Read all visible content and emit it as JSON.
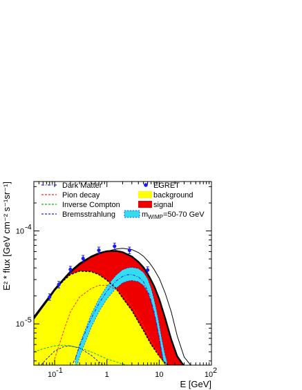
{
  "chart_data": {
    "type": "line",
    "xlabel": "E [GeV]",
    "ylabel": "E² * flux [GeV cm⁻² s⁻¹sr⁻¹]",
    "xscale": "log",
    "yscale": "log",
    "xlim": [
      0.04,
      100
    ],
    "ylim": [
      3.6e-06,
      0.00034
    ],
    "x_ticks": [
      {
        "value": 0.1,
        "label": "10",
        "exp": "-1"
      },
      {
        "value": 1,
        "label": "1",
        "exp": ""
      },
      {
        "value": 10,
        "label": "10",
        "exp": ""
      },
      {
        "value": 100,
        "label": "10",
        "exp": "2"
      }
    ],
    "y_ticks": [
      {
        "value": 0.0001,
        "label": "10",
        "exp": "-4"
      },
      {
        "value": 1e-05,
        "label": "10",
        "exp": "-5"
      }
    ],
    "legend": {
      "position": "top",
      "entries": [
        {
          "key": "dm",
          "label": "Dark Matter",
          "style": "dash",
          "color": "#1a1aff"
        },
        {
          "key": "egret",
          "label": "EGRET",
          "style": "marker",
          "color": "#1a1aee"
        },
        {
          "key": "pion",
          "label": "Pion decay",
          "style": "dash",
          "color": "#ff2222"
        },
        {
          "key": "bg",
          "label": "background",
          "style": "fill",
          "color": "#ffff00"
        },
        {
          "key": "ic",
          "label": "Inverse Compton",
          "style": "dash",
          "color": "#00bb00"
        },
        {
          "key": "sig",
          "label": "signal",
          "style": "fill",
          "color": "#ee0000"
        },
        {
          "key": "brems",
          "label": "Bremsstrahlung",
          "style": "dash",
          "color": "#1a1aff"
        },
        {
          "key": "band",
          "label": "m",
          "sub": "WIMP",
          "suffix": "=50-70 GeV",
          "style": "band",
          "color": "#33ddee"
        }
      ]
    },
    "series": [
      {
        "name": "EGRET",
        "type": "points",
        "color": "#1a1aee",
        "x": [
          0.08,
          0.12,
          0.2,
          0.35,
          0.7,
          1.4,
          2.7,
          6.0
        ],
        "y": [
          1.95e-05,
          2.65e-05,
          3.85e-05,
          5.05e-05,
          6.2e-05,
          6.85e-05,
          6.2e-05,
          3.8e-05
        ],
        "err_frac": 0.08
      },
      {
        "name": "background",
        "type": "area",
        "color": "#ffff00",
        "x": [
          0.04,
          0.06,
          0.08,
          0.1,
          0.15,
          0.2,
          0.3,
          0.5,
          0.7,
          1.0,
          1.5,
          2.0,
          3.0,
          4.0,
          5.0,
          7.0,
          10,
          13,
          17,
          22
        ],
        "y": [
          1.15e-05,
          1.55e-05,
          1.95e-05,
          2.3e-05,
          2.95e-05,
          3.4e-05,
          3.7e-05,
          3.65e-05,
          3.4e-05,
          2.95e-05,
          2.4e-05,
          1.9e-05,
          1.4e-05,
          1.05e-05,
          8.5e-06,
          6e-06,
          4.5e-06,
          3.8e-06,
          3.4e-06,
          3.2e-06
        ]
      },
      {
        "name": "signal",
        "type": "area",
        "color": "#ee0000",
        "x": [
          0.04,
          0.06,
          0.08,
          0.1,
          0.15,
          0.2,
          0.3,
          0.5,
          0.7,
          1.0,
          1.5,
          2.0,
          3.0,
          4.0,
          5.0,
          6.5,
          8.0,
          10,
          13,
          17,
          22,
          30
        ],
        "y": [
          1.18e-05,
          1.6e-05,
          1.98e-05,
          2.35e-05,
          3.05e-05,
          3.65e-05,
          4.45e-05,
          5.3e-05,
          5.75e-05,
          6.05e-05,
          6.1e-05,
          5.9e-05,
          5.3e-05,
          4.65e-05,
          4.05e-05,
          3.2e-05,
          2.55e-05,
          1.85e-05,
          1.15e-05,
          6.8e-06,
          4.5e-06,
          3.5e-06
        ]
      },
      {
        "name": "total model",
        "type": "line",
        "style": "solid",
        "width": 2.4,
        "color": "#000000",
        "x": [
          0.04,
          0.06,
          0.08,
          0.1,
          0.15,
          0.2,
          0.3,
          0.5,
          0.7,
          1.0,
          1.5,
          2.0,
          3.0,
          4.0,
          5.0,
          6.5,
          8.0,
          10,
          13,
          17,
          22,
          30
        ],
        "y": [
          1.18e-05,
          1.6e-05,
          1.98e-05,
          2.35e-05,
          3.05e-05,
          3.65e-05,
          4.45e-05,
          5.3e-05,
          5.75e-05,
          6.05e-05,
          6.1e-05,
          5.9e-05,
          5.3e-05,
          4.65e-05,
          4.05e-05,
          3.2e-05,
          2.55e-05,
          1.85e-05,
          1.15e-05,
          6.8e-06,
          4.5e-06,
          3.5e-06
        ]
      },
      {
        "name": "alternative model",
        "type": "line",
        "style": "solid",
        "width": 1,
        "color": "#000000",
        "x": [
          0.04,
          0.06,
          0.08,
          0.1,
          0.15,
          0.2,
          0.3,
          0.5,
          0.7,
          1.0,
          1.5,
          2.0,
          3.0,
          4.0,
          5.0,
          6.5,
          8.0,
          10,
          13,
          17,
          22,
          30,
          40
        ],
        "y": [
          1.12e-05,
          1.53e-05,
          1.9e-05,
          2.27e-05,
          2.98e-05,
          3.55e-05,
          4.32e-05,
          5.2e-05,
          5.65e-05,
          6.05e-05,
          6.4e-05,
          6.5e-05,
          6.3e-05,
          5.85e-05,
          5.35e-05,
          4.55e-05,
          3.85e-05,
          3.1e-05,
          2.15e-05,
          1.35e-05,
          7.5e-06,
          4.4e-06,
          3.6e-06
        ]
      },
      {
        "name": "background outline",
        "type": "line",
        "style": "dash",
        "width": 1.6,
        "color": "#000000",
        "x": [
          0.04,
          0.06,
          0.08,
          0.1,
          0.15,
          0.2,
          0.3,
          0.5,
          0.7,
          1.0,
          1.5,
          2.0,
          3.0,
          4.0,
          5.0,
          7.0,
          10,
          13,
          17,
          22
        ],
        "y": [
          1.15e-05,
          1.55e-05,
          1.95e-05,
          2.3e-05,
          2.95e-05,
          3.4e-05,
          3.7e-05,
          3.65e-05,
          3.4e-05,
          2.95e-05,
          2.4e-05,
          1.9e-05,
          1.4e-05,
          1.05e-05,
          8.5e-06,
          6e-06,
          4.5e-06,
          3.8e-06,
          3.4e-06,
          3.2e-06
        ]
      },
      {
        "name": "Pion decay",
        "type": "line",
        "style": "dash",
        "width": 1,
        "color": "#ff2222",
        "x": [
          0.1,
          0.15,
          0.2,
          0.3,
          0.5,
          0.7,
          1.0,
          1.5,
          2.0,
          3.0,
          4.0,
          5.0,
          7.0,
          10,
          15,
          20
        ],
        "y": [
          4.2e-06,
          8.5e-06,
          1.35e-05,
          1.95e-05,
          2.4e-05,
          2.6e-05,
          2.6e-05,
          2.35e-05,
          2.05e-05,
          1.55e-05,
          1.2e-05,
          9.5e-06,
          6.5e-06,
          4.5e-06,
          3.3e-06,
          3e-06
        ]
      },
      {
        "name": "Inverse Compton",
        "type": "line",
        "style": "dash",
        "width": 1,
        "color": "#00bb00",
        "x": [
          0.04,
          0.06,
          0.1,
          0.15,
          0.2,
          0.3,
          0.5,
          0.7,
          1.0,
          1.5,
          2.0,
          3.0,
          5.0,
          10
        ],
        "y": [
          5e-06,
          5.4e-06,
          5.8e-06,
          5.9e-06,
          5.8e-06,
          5.5e-06,
          5e-06,
          4.6e-06,
          4.2e-06,
          3.9e-06,
          3.7e-06,
          3.5e-06,
          3.3e-06,
          3.1e-06
        ]
      },
      {
        "name": "Bremsstrahlung",
        "type": "line",
        "style": "dash",
        "width": 1,
        "color": "#1a1aff",
        "x": [
          0.05,
          0.07,
          0.1,
          0.15,
          0.2,
          0.3,
          0.5,
          0.7,
          1.0,
          1.5
        ],
        "y": [
          3.4e-06,
          4.2e-06,
          5.1e-06,
          5.7e-06,
          5.8e-06,
          5.5e-06,
          4.6e-06,
          3.9e-06,
          3.3e-06,
          2.9e-06
        ]
      },
      {
        "name": "Dark Matter",
        "type": "line",
        "style": "dashdot",
        "width": 1,
        "color": "#1a1aff",
        "x": [
          0.2,
          0.25,
          0.3,
          0.5,
          0.7,
          1.0,
          1.5,
          2.0,
          2.5,
          3.0,
          4.0,
          5.0,
          6.5,
          8.0,
          10,
          12
        ],
        "y": [
          3.3e-06,
          4.3e-06,
          5.8e-06,
          1.15e-05,
          1.65e-05,
          2.25e-05,
          2.9e-05,
          3.25e-05,
          3.38e-05,
          3.4e-05,
          3.2e-05,
          2.85e-05,
          2.05e-05,
          1.35e-05,
          7.2e-06,
          3.8e-06
        ]
      },
      {
        "name": "m_WIMP=50-70 GeV",
        "type": "band",
        "color": "#33ddee",
        "x": [
          0.25,
          0.3,
          0.5,
          0.7,
          1.0,
          1.5,
          2.0,
          2.5,
          3.0,
          4.0,
          5.0,
          6.0,
          7.0,
          8.0,
          9.0,
          10,
          11,
          12,
          13,
          14
        ],
        "y": [
          3.6e-06,
          5.2e-06,
          1.08e-05,
          1.58e-05,
          2.18e-05,
          2.85e-05,
          3.25e-05,
          3.4e-05,
          3.45e-05,
          3.35e-05,
          3.05e-05,
          2.6e-05,
          2.05e-05,
          1.55e-05,
          1.15e-05,
          8.4e-06,
          6.2e-06,
          4.8e-06,
          3.9e-06,
          3.4e-06
        ],
        "width_dex": 0.07
      }
    ]
  }
}
